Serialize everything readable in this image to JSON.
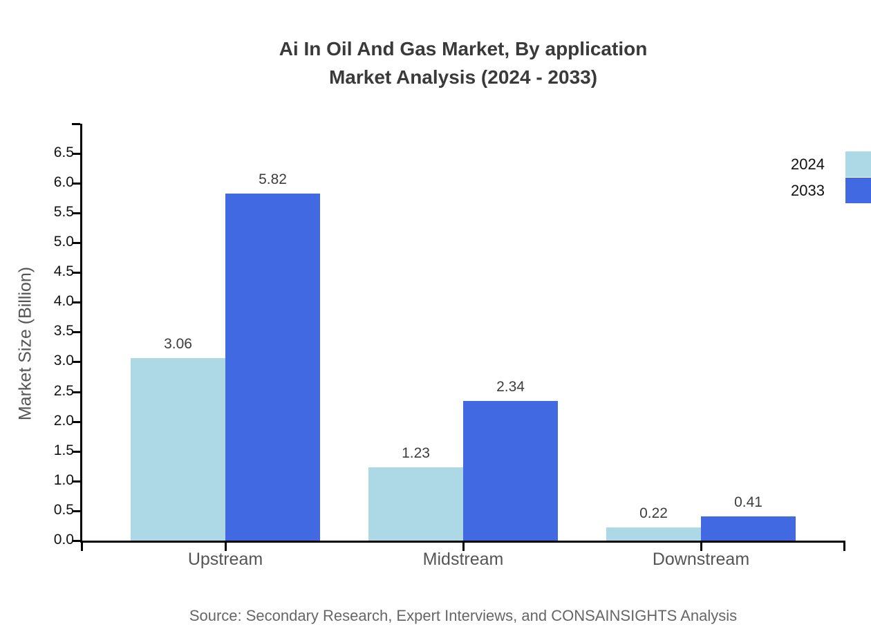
{
  "title": {
    "line1": "Ai In Oil And Gas Market, By application",
    "line2": "Market Analysis (2024 - 2033)"
  },
  "source": "Source: Secondary Research, Expert Interviews, and CONSAINSIGHTS Analysis",
  "chart_data": {
    "type": "bar",
    "title": "Ai In Oil And Gas Market, By application Market Analysis (2024 - 2033)",
    "categories": [
      "Upstream",
      "Midstream",
      "Downstream"
    ],
    "series": [
      {
        "name": "2024",
        "color": "#ADD8E6",
        "values": [
          3.06,
          1.23,
          0.22
        ]
      },
      {
        "name": "2033",
        "color": "#4169E1",
        "values": [
          5.82,
          2.34,
          0.41
        ]
      }
    ],
    "xlabel": "",
    "ylabel": "Market Size (Billion)",
    "ylim": [
      0,
      7.0
    ],
    "ytick_step": 0.5,
    "ytick_max_labeled": 6.5,
    "grid": false,
    "legend_position": "top-right",
    "value_labels": true
  }
}
